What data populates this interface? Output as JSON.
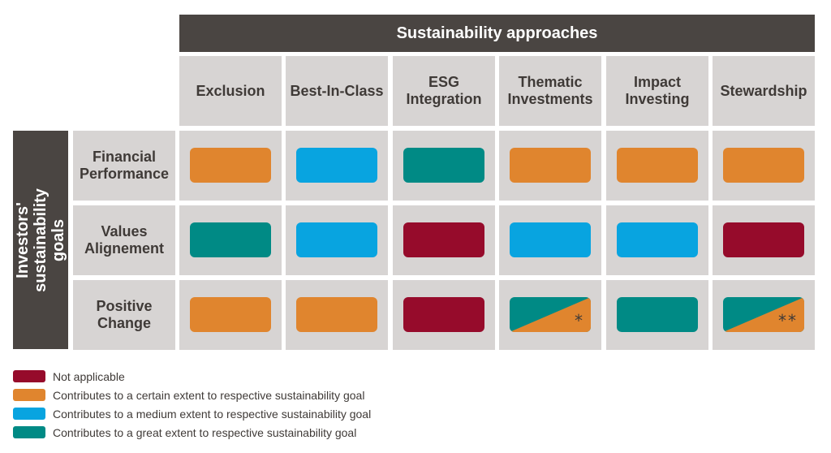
{
  "header": {
    "title": "Sustainability approaches"
  },
  "side": {
    "title": "Investors' sustainability\ngoals"
  },
  "colors": {
    "not_applicable": "#960b2b",
    "certain": "#e0852e",
    "medium": "#08a4e0",
    "great": "#008a85"
  },
  "columns": [
    {
      "label": "Exclusion"
    },
    {
      "label": "Best-In-Class"
    },
    {
      "label": "ESG\nIntegration"
    },
    {
      "label": "Thematic\nInvestments"
    },
    {
      "label": "Impact\nInvesting"
    },
    {
      "label": "Stewardship"
    }
  ],
  "rows": [
    {
      "label": "Financial\nPerformance",
      "cells": [
        {
          "level": "certain"
        },
        {
          "level": "medium"
        },
        {
          "level": "great"
        },
        {
          "level": "certain"
        },
        {
          "level": "certain"
        },
        {
          "level": "certain"
        }
      ]
    },
    {
      "label": "Values\nAlignement",
      "cells": [
        {
          "level": "great"
        },
        {
          "level": "medium"
        },
        {
          "level": "not_applicable"
        },
        {
          "level": "medium"
        },
        {
          "level": "medium"
        },
        {
          "level": "not_applicable"
        }
      ]
    },
    {
      "label": "Positive\nChange",
      "cells": [
        {
          "level": "certain"
        },
        {
          "level": "certain"
        },
        {
          "level": "not_applicable"
        },
        {
          "level": "great",
          "split": "certain",
          "mark": "*"
        },
        {
          "level": "great"
        },
        {
          "level": "great",
          "split": "certain",
          "mark": "**"
        }
      ]
    }
  ],
  "legend": [
    {
      "level": "not_applicable",
      "label": "Not applicable"
    },
    {
      "level": "certain",
      "label": "Contributes to a certain extent to respective sustainability goal"
    },
    {
      "level": "medium",
      "label": "Contributes to a medium extent to respective sustainability goal"
    },
    {
      "level": "great",
      "label": "Contributes to a great extent to respective sustainability goal"
    }
  ]
}
